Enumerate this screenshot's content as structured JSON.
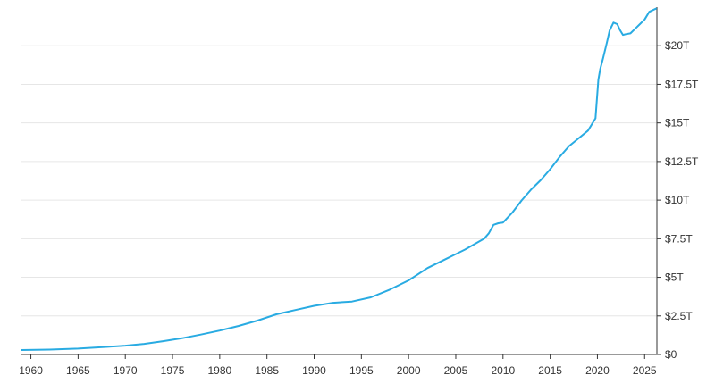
{
  "chart_data": {
    "type": "line",
    "title": "",
    "xlabel": "",
    "ylabel": "",
    "grid": true,
    "line_color": "#29abe2",
    "xlim": [
      1959,
      2026.3
    ],
    "ylim": [
      0,
      22.5
    ],
    "x_ticks": [
      1960,
      1965,
      1970,
      1975,
      1980,
      1985,
      1990,
      1995,
      2000,
      2005,
      2010,
      2015,
      2020,
      2025
    ],
    "x_tick_labels": [
      "1960",
      "1965",
      "1970",
      "1975",
      "1980",
      "1985",
      "1990",
      "1995",
      "2000",
      "2005",
      "2010",
      "2015",
      "2020",
      "2025"
    ],
    "y_ticks": [
      0,
      2.5,
      5,
      7.5,
      10,
      12.5,
      15,
      17.5,
      20
    ],
    "y_tick_labels": [
      "$0",
      "$2.5T",
      "$5T",
      "$7.5T",
      "$10T",
      "$12.5T",
      "$15T",
      "$17.5T",
      "$20T"
    ],
    "series": [
      {
        "x": [
          1959,
          1962,
          1965,
          1968,
          1970,
          1972,
          1974,
          1976,
          1978,
          1980,
          1982,
          1984,
          1986,
          1988,
          1990,
          1992,
          1994,
          1996,
          1998,
          2000,
          2002,
          2004,
          2006,
          2008,
          2008.5,
          2009,
          2009.5,
          2010,
          2011,
          2012,
          2013,
          2014,
          2015,
          2016,
          2017,
          2018,
          2019,
          2019.8,
          2020.1,
          2020.3,
          2020.6,
          2021,
          2021.3,
          2021.7,
          2022.1,
          2022.4,
          2022.7,
          2023,
          2023.5,
          2024,
          2024.5,
          2025,
          2025.5,
          2026.2
        ],
        "y": [
          0.29,
          0.32,
          0.38,
          0.49,
          0.57,
          0.69,
          0.86,
          1.05,
          1.29,
          1.55,
          1.85,
          2.2,
          2.6,
          2.88,
          3.15,
          3.35,
          3.43,
          3.7,
          4.2,
          4.8,
          5.6,
          6.2,
          6.8,
          7.5,
          7.85,
          8.4,
          8.5,
          8.55,
          9.2,
          10.0,
          10.7,
          11.3,
          12.0,
          12.8,
          13.5,
          14.0,
          14.5,
          15.3,
          17.8,
          18.5,
          19.2,
          20.2,
          21.0,
          21.5,
          21.4,
          21.0,
          20.7,
          20.75,
          20.8,
          21.1,
          21.4,
          21.7,
          22.2,
          22.4
        ]
      }
    ]
  }
}
